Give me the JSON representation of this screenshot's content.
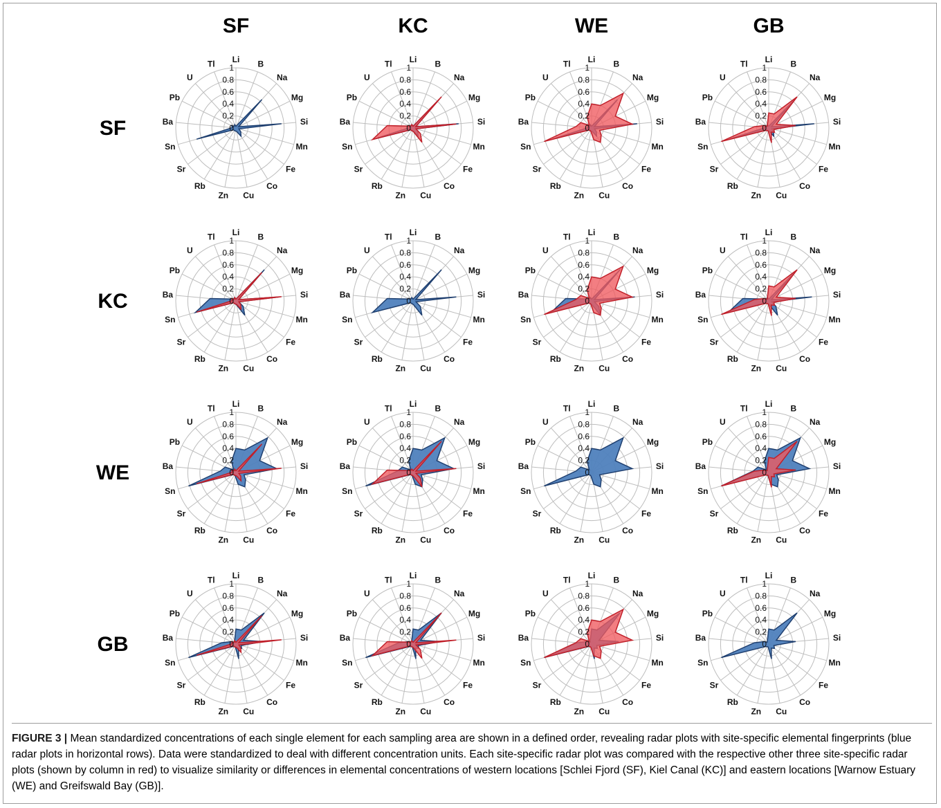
{
  "figure": {
    "column_headers": [
      "SF",
      "KC",
      "WE",
      "GB"
    ],
    "row_headers": [
      "SF",
      "KC",
      "WE",
      "GB"
    ],
    "caption_label": "FIGURE 3 |",
    "caption_text": "Mean standardized concentrations of each single element for each sampling area are shown in a defined order, revealing radar plots with site-specific elemental fingerprints (blue radar plots in horizontal rows). Data were standardized to deal with different concentration units. Each site-specific radar plot was compared with the respective other three site-specific radar plots (shown by column in red) to visualize similarity or differences in elemental concentrations of western locations [Schlei Fjord (SF), Kiel Canal (KC)] and eastern locations [Warnow Estuary (WE) and Greifswald Bay (GB)]."
  },
  "chart_data": {
    "type": "radar",
    "axes": [
      "Li",
      "B",
      "Na",
      "Mg",
      "Si",
      "Mn",
      "Fe",
      "Co",
      "Cu",
      "Zn",
      "Rb",
      "Sr",
      "Sn",
      "Ba",
      "Pb",
      "U",
      "Tl"
    ],
    "radial_ticks": [
      "0",
      "0.2",
      "0.4",
      "0.6",
      "0.8",
      "1"
    ],
    "rlim": [
      0,
      1
    ],
    "grid": true,
    "colors": {
      "blue_fill": "#4f81bd",
      "blue_edge": "#1f3f6f",
      "red_fill": "#ef5a5f",
      "red_edge": "#c0202a",
      "grid": "#bdbdbd"
    },
    "sites": [
      {
        "name": "SF",
        "values": [
          0.03,
          0.05,
          0.64,
          0.05,
          0.76,
          0.05,
          0.1,
          0.16,
          0.06,
          0.05,
          0.05,
          0.05,
          0.68,
          0.06,
          0.08,
          0.04,
          0.06
        ]
      },
      {
        "name": "KC",
        "values": [
          0.03,
          0.05,
          0.7,
          0.05,
          0.72,
          0.05,
          0.15,
          0.28,
          0.07,
          0.05,
          0.05,
          0.05,
          0.7,
          0.43,
          0.07,
          0.05,
          0.06
        ]
      },
      {
        "name": "WE",
        "values": [
          0.4,
          0.4,
          0.78,
          0.44,
          0.68,
          0.14,
          0.2,
          0.28,
          0.2,
          0.06,
          0.05,
          0.06,
          0.82,
          0.26,
          0.2,
          0.06,
          0.2
        ]
      },
      {
        "name": "GB",
        "values": [
          0.25,
          0.25,
          0.7,
          0.14,
          0.45,
          0.09,
          0.12,
          0.08,
          0.25,
          0.05,
          0.05,
          0.07,
          0.82,
          0.24,
          0.09,
          0.04,
          0.06
        ]
      }
    ],
    "panels_note": "Row = site shown in blue; column = site overlaid in red (diagonal panels show only blue)."
  }
}
